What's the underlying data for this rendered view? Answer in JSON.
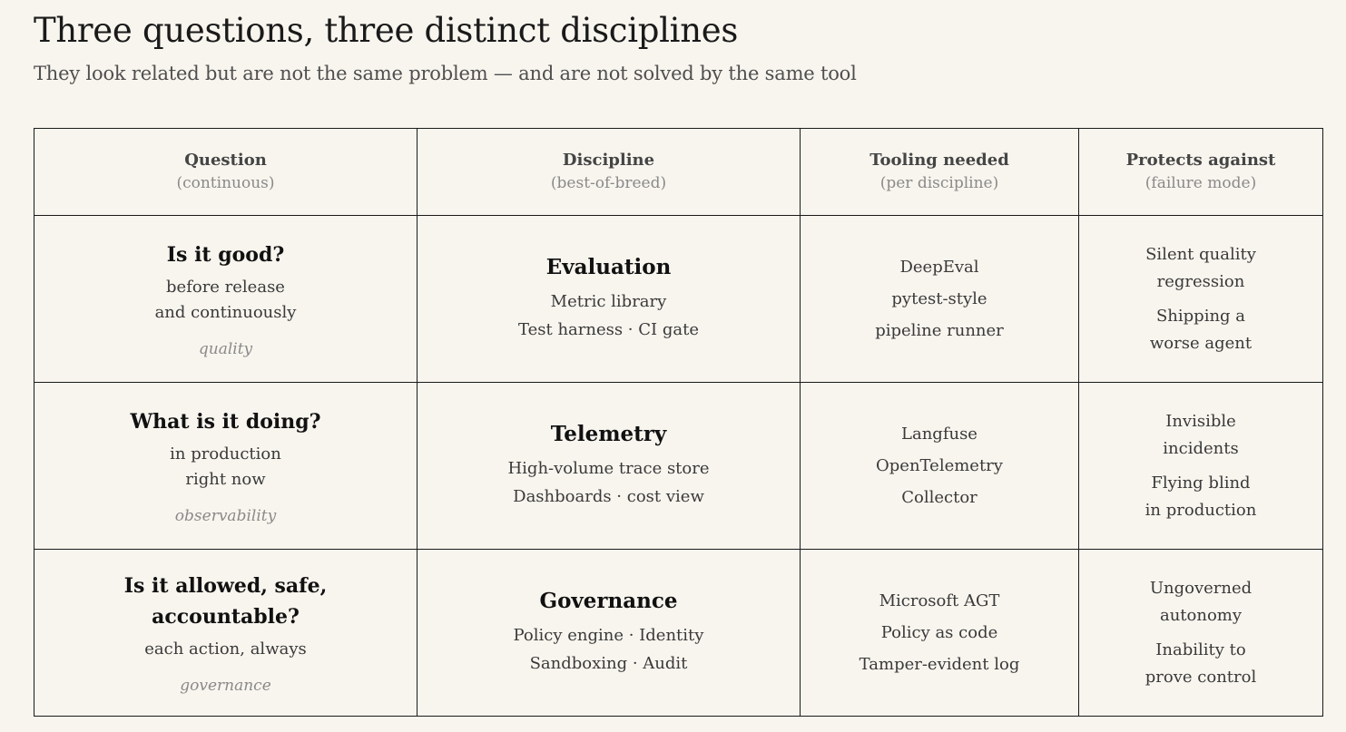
{
  "title": "Three questions, three distinct disciplines",
  "subtitle": "They look related but are not the same problem — and are not solved by the same tool",
  "headers": [
    {
      "label": "Question",
      "sub": "(continuous)"
    },
    {
      "label": "Discipline",
      "sub": "(best-of-breed)"
    },
    {
      "label": "Tooling needed",
      "sub": "(per discipline)"
    },
    {
      "label": "Protects against",
      "sub": "(failure mode)"
    }
  ],
  "rows": [
    {
      "question": {
        "title": [
          "Is it good?"
        ],
        "detail": [
          "before release",
          "and continuously"
        ],
        "tag": "quality"
      },
      "discipline": {
        "title": "Evaluation",
        "lines": [
          "Metric library",
          "Test harness · CI gate"
        ]
      },
      "tooling": [
        "DeepEval",
        "pytest-style",
        "pipeline runner"
      ],
      "protects": [
        [
          "Silent quality",
          "regression"
        ],
        [
          "Shipping a",
          "worse agent"
        ]
      ]
    },
    {
      "question": {
        "title": [
          "What is it doing?"
        ],
        "detail": [
          "in production",
          "right now"
        ],
        "tag": "observability"
      },
      "discipline": {
        "title": "Telemetry",
        "lines": [
          "High-volume trace store",
          "Dashboards · cost view"
        ]
      },
      "tooling": [
        "Langfuse",
        "OpenTelemetry",
        "Collector"
      ],
      "protects": [
        [
          "Invisible",
          "incidents"
        ],
        [
          "Flying blind",
          "in production"
        ]
      ]
    },
    {
      "question": {
        "title": [
          "Is it allowed, safe,",
          "accountable?"
        ],
        "detail": [
          "each action, always"
        ],
        "tag": "governance"
      },
      "discipline": {
        "title": "Governance",
        "lines": [
          "Policy engine · Identity",
          "Sandboxing · Audit"
        ]
      },
      "tooling": [
        "Microsoft AGT",
        "Policy as code",
        "Tamper-evident log"
      ],
      "protects": [
        [
          "Ungoverned",
          "autonomy"
        ],
        [
          "Inability to",
          "prove control"
        ]
      ]
    }
  ]
}
